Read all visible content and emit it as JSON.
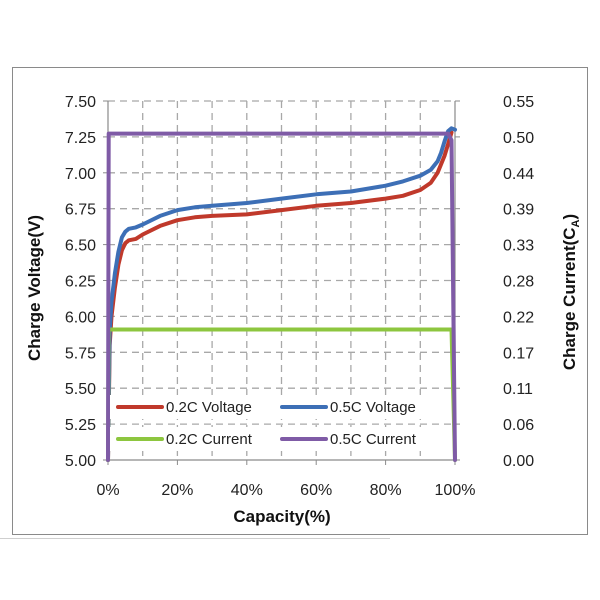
{
  "chart_data": {
    "type": "line",
    "xlabel": "Capacity(%)",
    "ylabel": "Charge Voltage(V)",
    "y2label": "Charge Current(CA)",
    "y2label_parts": {
      "main": "Charge Current(C",
      "sub": "A",
      "close": ")"
    },
    "xlim": [
      0,
      100
    ],
    "ylim": [
      5.0,
      7.5
    ],
    "y2lim": [
      0,
      0.55
    ],
    "x_ticks": [
      0,
      20,
      40,
      60,
      80,
      100
    ],
    "x_tick_labels": [
      "0%",
      "20%",
      "40%",
      "60%",
      "80%",
      "100%"
    ],
    "y_ticks": [
      5.0,
      5.25,
      5.5,
      5.75,
      6.0,
      6.25,
      6.5,
      6.75,
      7.0,
      7.25,
      7.5
    ],
    "y_tick_labels": [
      "5.00",
      "5.25",
      "5.50",
      "5.75",
      "6.00",
      "6.25",
      "6.50",
      "6.75",
      "7.00",
      "7.25",
      "7.50"
    ],
    "y2_ticks": [
      0,
      0.055,
      0.11,
      0.165,
      0.22,
      0.275,
      0.33,
      0.385,
      0.44,
      0.495,
      0.55
    ],
    "y2_tick_labels": [
      "0.00",
      "0.06",
      "0.11",
      "0.17",
      "0.22",
      "0.28",
      "0.33",
      "0.39",
      "0.44",
      "0.50",
      "0.55"
    ],
    "grid": true,
    "grid_style": "dashed",
    "legend_position": "bottom-center",
    "series": [
      {
        "name": "0.2C Voltage",
        "axis": "left",
        "color": "#c0392b",
        "x": [
          0,
          0.5,
          1,
          2,
          3,
          4,
          5,
          6,
          8,
          10,
          15,
          20,
          25,
          30,
          40,
          50,
          60,
          70,
          80,
          85,
          90,
          93,
          95,
          97,
          98,
          99
        ],
        "y": [
          5.0,
          5.8,
          6.0,
          6.2,
          6.36,
          6.46,
          6.51,
          6.53,
          6.54,
          6.57,
          6.63,
          6.67,
          6.69,
          6.7,
          6.71,
          6.74,
          6.77,
          6.79,
          6.82,
          6.84,
          6.88,
          6.93,
          7.0,
          7.12,
          7.2,
          7.28
        ]
      },
      {
        "name": "0.5C Voltage",
        "axis": "left",
        "color": "#3d6fb6",
        "x": [
          0,
          0.5,
          1,
          2,
          3,
          4,
          5,
          6,
          8,
          10,
          15,
          20,
          25,
          30,
          40,
          50,
          60,
          70,
          80,
          85,
          90,
          93,
          95,
          96,
          97,
          98,
          99,
          100
        ],
        "y": [
          5.0,
          5.9,
          6.1,
          6.3,
          6.45,
          6.55,
          6.59,
          6.61,
          6.62,
          6.64,
          6.7,
          6.74,
          6.76,
          6.77,
          6.79,
          6.82,
          6.85,
          6.87,
          6.91,
          6.94,
          6.98,
          7.02,
          7.08,
          7.14,
          7.22,
          7.29,
          7.31,
          7.3
        ]
      },
      {
        "name": "0.2C Current",
        "axis": "right",
        "color": "#8dc63f",
        "x": [
          0,
          0.2,
          99,
          100
        ],
        "y": [
          0,
          0.2,
          0.2,
          0
        ]
      },
      {
        "name": "0.5C Current",
        "axis": "right",
        "color": "#7f5ba6",
        "x": [
          0,
          0.2,
          98,
          99,
          100
        ],
        "y": [
          0,
          0.5,
          0.5,
          0.49,
          0
        ]
      }
    ]
  }
}
